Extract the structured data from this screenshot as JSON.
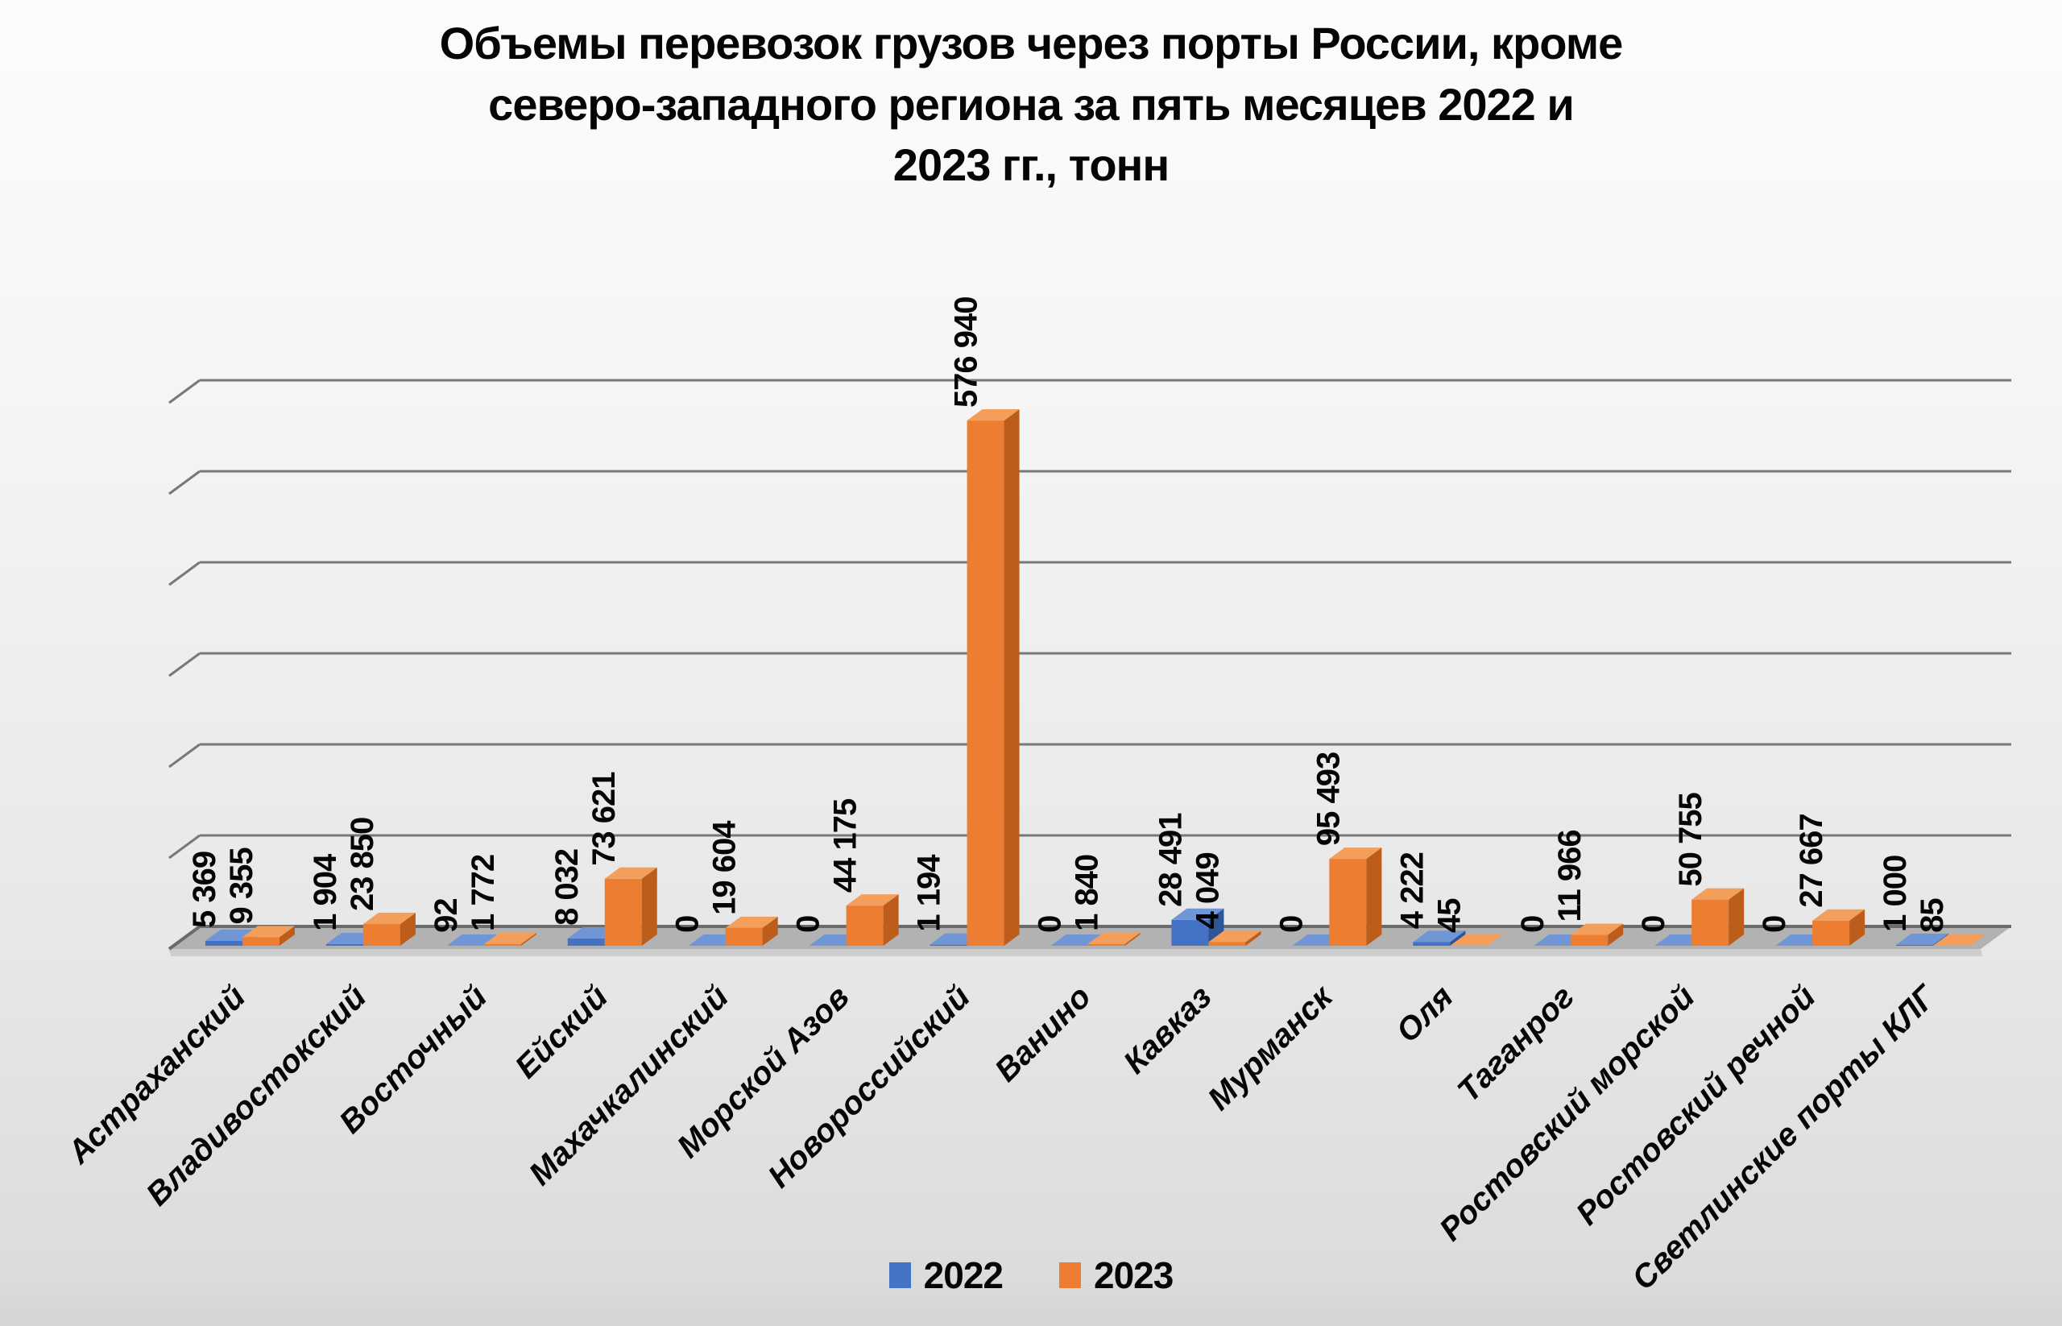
{
  "title_lines": [
    "Объемы перевозок грузов через порты России, кроме",
    "северо-западного региона за пять месяцев 2022 и",
    "2023 гг., тонн"
  ],
  "chart_data": {
    "type": "bar",
    "style": "3d-clustered-column",
    "title": "Объемы перевозок грузов через порты России, кроме северо-западного региона за пять месяцев 2022 и 2023 гг., тонн",
    "categories": [
      "Астраханский",
      "Владивостокский",
      "Восточный",
      "Ейский",
      "Махачкалинский",
      "Морской Азов",
      "Новороссийский",
      "Ванино",
      "Кавказ",
      "Мурманск",
      "Оля",
      "Таганрог",
      "Ростовский морской",
      "Ростовский речной",
      "Светлинские порты КЛГ"
    ],
    "series": [
      {
        "name": "2022",
        "color": "#4472C4",
        "color_top": "#7096D6",
        "color_side": "#2E5598",
        "values": [
          5369,
          1904,
          92,
          8032,
          0,
          0,
          1194,
          0,
          28491,
          0,
          4222,
          0,
          0,
          0,
          1000
        ],
        "labels": [
          "5 369",
          "1 904",
          "92",
          "8 032",
          "0",
          "0",
          "1 194",
          "0",
          "28 491",
          "0",
          "4 222",
          "0",
          "0",
          "0",
          "1 000"
        ]
      },
      {
        "name": "2023",
        "color": "#ED7D31",
        "color_top": "#F49E5B",
        "color_side": "#BC5D1C",
        "values": [
          9355,
          23850,
          1772,
          73621,
          19604,
          44175,
          576940,
          1840,
          4049,
          95493,
          45,
          11966,
          50755,
          27667,
          85
        ],
        "labels": [
          "9 355",
          "23 850",
          "1 772",
          "73 621",
          "19 604",
          "44 175",
          "576 940",
          "1 840",
          "4 049",
          "95 493",
          "45",
          "11 966",
          "50 755",
          "27 667",
          "85"
        ]
      }
    ],
    "ylim": [
      0,
      600000
    ],
    "gridline_step": 100000,
    "grid": true,
    "value_axis_labels_visible": false,
    "value_labels": "rotated-vertical",
    "legend_position": "bottom",
    "colors": {
      "gridline": "#787878",
      "zero_line": "#6b6b6b",
      "floor": "#b2b2b2",
      "floor_edge": "#cdcdcd",
      "text": "#050505"
    }
  }
}
